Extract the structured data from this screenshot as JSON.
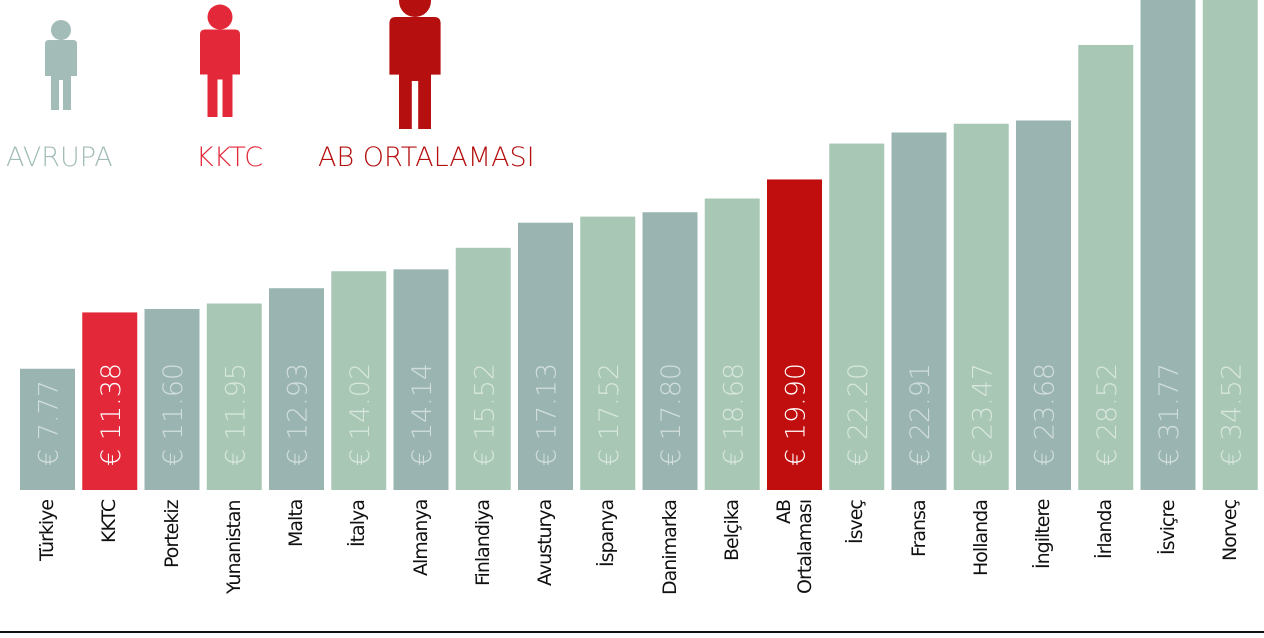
{
  "chart_data": {
    "type": "bar",
    "legend": [
      {
        "name": "AVRUPA",
        "color": "#a3bcb8"
      },
      {
        "name": "KKTC",
        "color": "#e3283a"
      },
      {
        "name": "AB ORTALAMASI",
        "color": "#b50f0f"
      }
    ],
    "categories": [
      "Türkiye",
      "KKTC",
      "Portekiz",
      "Yunanistan",
      "Malta",
      "İtalya",
      "Almanya",
      "Finlandiya",
      "Avusturya",
      "İspanya",
      "Danimarka",
      "Belçika",
      "AB Ortalaması",
      "İsveç",
      "Fransa",
      "Hollanda",
      "İngiltere",
      "İrlanda",
      "İsviçre",
      "Norveç"
    ],
    "values": [
      7.77,
      11.38,
      11.6,
      11.95,
      12.93,
      14.02,
      14.14,
      15.52,
      17.13,
      17.52,
      17.8,
      18.68,
      19.9,
      22.2,
      22.91,
      23.47,
      23.68,
      28.52,
      31.77,
      34.52
    ],
    "value_labels": [
      "€ 7.77",
      "€ 11.38",
      "€ 11.60",
      "€ 11.95",
      "€ 12.93",
      "€ 14.02",
      "€ 14.14",
      "€ 15.52",
      "€ 17.13",
      "€ 17.52",
      "€ 17.80",
      "€ 18.68",
      "€ 19.90",
      "€ 22.20",
      "€ 22.91",
      "€ 23.47",
      "€ 23.68",
      "€ 28.52",
      "€ 31.77",
      "€ 34.52"
    ],
    "colors": [
      "#9ab5b1",
      "#e3283a",
      "#9ab5b1",
      "#a8c8b5",
      "#9ab5b1",
      "#a8c8b5",
      "#9ab5b1",
      "#a8c8b5",
      "#9ab5b1",
      "#a8c8b5",
      "#9ab5b1",
      "#a8c8b5",
      "#c00d0d",
      "#a8c8b5",
      "#9ab5b1",
      "#a8c8b5",
      "#9ab5b1",
      "#a8c8b5",
      "#9ab5b1",
      "#a8c8b5"
    ],
    "ylim": [
      0,
      31.4
    ]
  }
}
